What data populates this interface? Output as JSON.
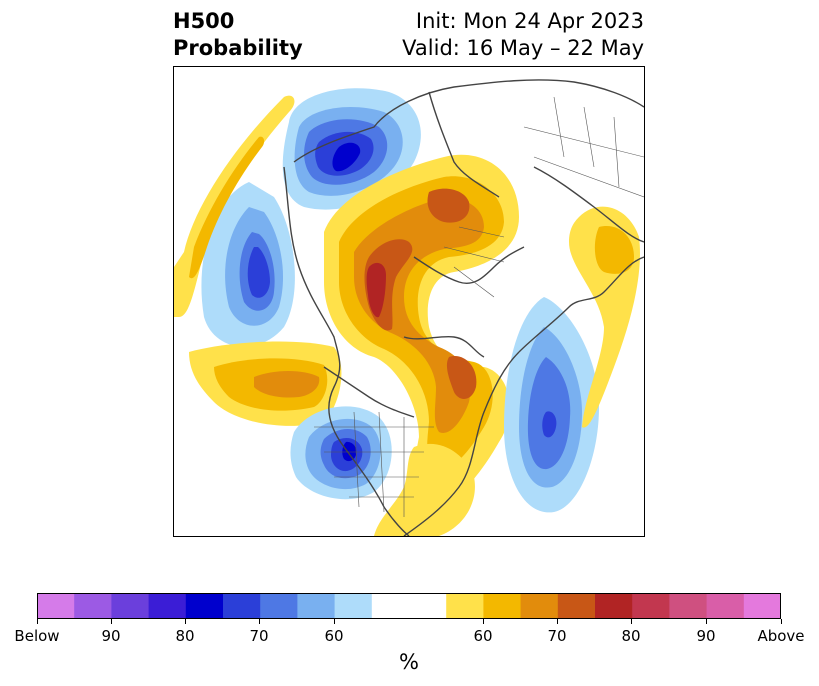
{
  "title": {
    "left_line1": "H500",
    "left_line2": "Probability",
    "right_line1": "Init: Mon 24 Apr 2023",
    "right_line2": "Valid: 16 May – 22 May"
  },
  "colorbar": {
    "unit": "%",
    "ticks": [
      "Below",
      "90",
      "80",
      "70",
      "60",
      "60",
      "70",
      "80",
      "90",
      "Above"
    ],
    "colors": [
      "#d57be9",
      "#9c5ae4",
      "#6b3fdc",
      "#3b1dd6",
      "#0000cd",
      "#2b3fd8",
      "#4e78e4",
      "#79b0f0",
      "#aedcfa",
      "#ffffff",
      "#ffe14a",
      "#f3b800",
      "#e28c0c",
      "#c85716",
      "#b12424",
      "#c2374f",
      "#cf5080",
      "#d95ea8",
      "#e479dd"
    ]
  },
  "map": {
    "projection": "north-polar-stereographic",
    "below_color_levels": [
      "#aedcfa",
      "#79b0f0",
      "#4e78e4",
      "#2b3fd8",
      "#0000cd"
    ],
    "above_color_levels": [
      "#ffe14a",
      "#f3b800",
      "#e28c0c",
      "#c85716",
      "#b12424"
    ]
  }
}
